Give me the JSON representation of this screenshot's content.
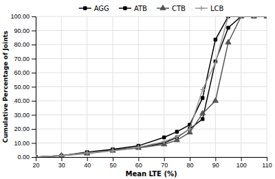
{
  "chart_data": {
    "type": "line",
    "xlabel": "Mean LTE (%)",
    "ylabel": "Cumulative Percentage of Joints",
    "x": [
      20,
      30,
      40,
      50,
      60,
      70,
      75,
      80,
      85,
      90,
      95,
      100,
      105,
      110
    ],
    "series": [
      {
        "name": "AGG",
        "color": "#000000",
        "marker": "square",
        "values": [
          0.0,
          1.0,
          3.0,
          5.0,
          7.0,
          10.0,
          14.0,
          20.0,
          27.0,
          68.0,
          92.0,
          100.0,
          100.0,
          100.0
        ]
      },
      {
        "name": "ATB",
        "color": "#000000",
        "marker": "square",
        "values": [
          0.0,
          1.0,
          3.5,
          5.5,
          8.0,
          14.0,
          18.0,
          23.0,
          42.0,
          83.5,
          100.0,
          100.0,
          100.0,
          100.0
        ]
      },
      {
        "name": "CTB",
        "color": "#555555",
        "marker": "triangle",
        "values": [
          0.0,
          1.0,
          2.5,
          4.5,
          6.5,
          9.0,
          12.0,
          17.5,
          31.0,
          40.0,
          81.5,
          100.0,
          100.0,
          100.0
        ]
      },
      {
        "name": "LCB",
        "color": "#999999",
        "marker": "plus",
        "values": [
          0.0,
          1.0,
          3.0,
          4.5,
          7.0,
          11.0,
          14.5,
          20.0,
          48.0,
          67.0,
          100.0,
          100.0,
          100.0,
          100.0
        ]
      }
    ],
    "xlim": [
      20,
      110
    ],
    "ylim": [
      0,
      100
    ],
    "xticks": [
      20,
      30,
      40,
      50,
      60,
      70,
      80,
      90,
      100,
      110
    ],
    "yticks": [
      {
        "value": 0,
        "label": "0.00"
      },
      {
        "value": 10,
        "label": "10.00"
      },
      {
        "value": 20,
        "label": "20.00"
      },
      {
        "value": 30,
        "label": "30.00"
      },
      {
        "value": 40,
        "label": "40.00"
      },
      {
        "value": 50,
        "label": "50.00"
      },
      {
        "value": 60,
        "label": "60.00"
      },
      {
        "value": 70,
        "label": "70.00"
      },
      {
        "value": 80,
        "label": "80.00"
      },
      {
        "value": 90,
        "label": "90.00"
      },
      {
        "value": 100,
        "label": "100.00"
      }
    ],
    "grid": true,
    "legend": "top"
  }
}
